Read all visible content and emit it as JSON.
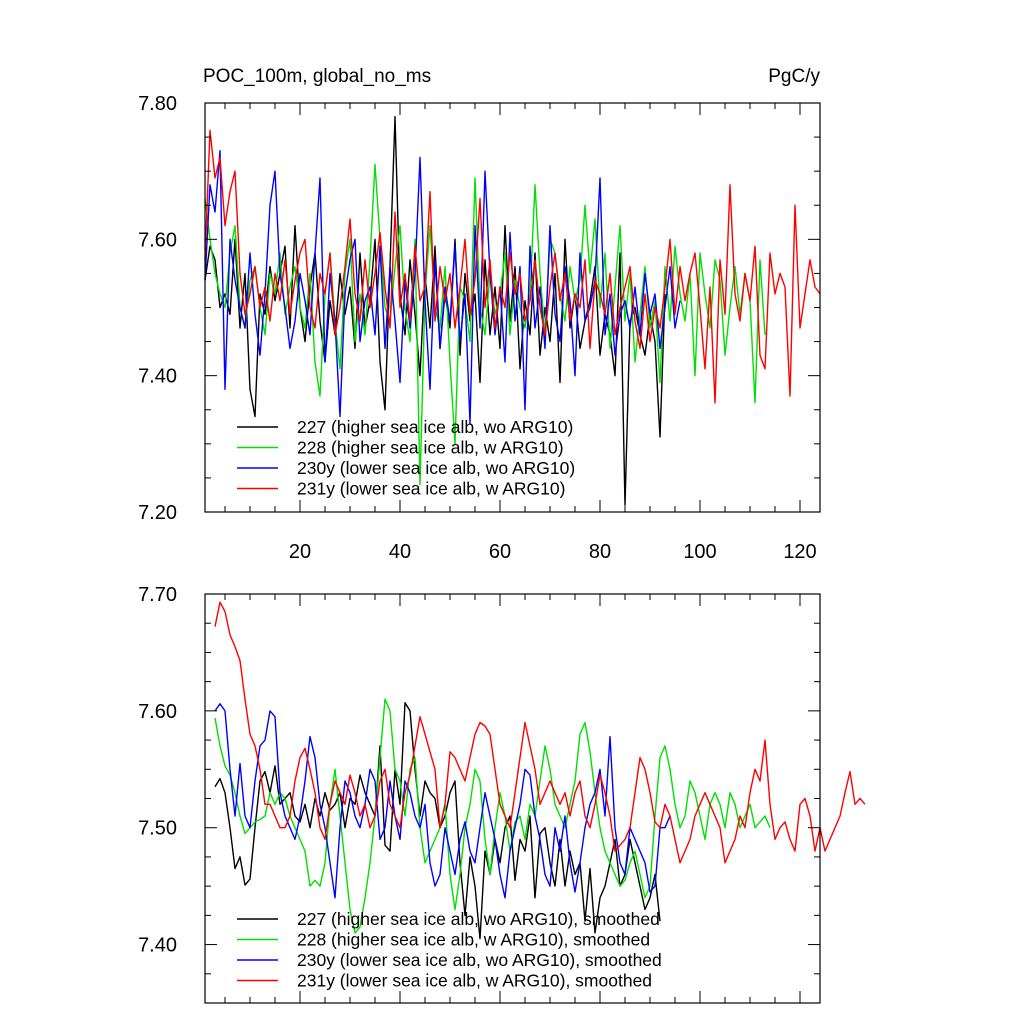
{
  "header": {
    "left": "POC_100m, global_no_ms",
    "right": "PgC/y"
  },
  "chart_data": [
    {
      "id": "top",
      "type": "line",
      "title": "POC_100m, global_no_ms",
      "units": "PgC/y",
      "xlim": [
        1,
        124
      ],
      "ylim": [
        7.2,
        7.8
      ],
      "xticks": [
        20,
        40,
        60,
        80,
        100,
        120
      ],
      "yticks": [
        7.2,
        7.4,
        7.6,
        7.8
      ],
      "ytick_labels": [
        "7.20",
        "7.40",
        "7.60",
        "7.80"
      ],
      "legend_position": "lower-left",
      "series": [
        {
          "name": "227 (higher sea ice alb, wo ARG10)",
          "color": "#000000",
          "x_start": 1,
          "values": [
            7.54,
            7.59,
            7.57,
            7.5,
            7.52,
            7.49,
            7.6,
            7.47,
            7.55,
            7.38,
            7.34,
            7.52,
            7.49,
            7.56,
            7.51,
            7.55,
            7.59,
            7.47,
            7.62,
            7.5,
            7.45,
            7.53,
            7.58,
            7.48,
            7.42,
            7.51,
            7.46,
            7.55,
            7.49,
            7.53,
            7.44,
            7.58,
            7.47,
            7.51,
            7.6,
            7.42,
            7.35,
            7.56,
            7.78,
            7.52,
            7.46,
            7.57,
            7.49,
            7.4,
            7.55,
            7.47,
            7.59,
            7.44,
            7.52,
            7.47,
            7.6,
            7.43,
            7.55,
            7.48,
            7.52,
            7.39,
            7.57,
            7.46,
            7.53,
            7.44,
            7.62,
            7.48,
            7.56,
            7.41,
            7.51,
            7.46,
            7.58,
            7.43,
            7.5,
            7.45,
            7.55,
            7.39,
            7.6,
            7.47,
            7.52,
            7.44,
            7.48,
            7.51,
            7.56,
            7.43,
            7.49,
            7.46,
            7.4,
            7.58,
            7.21,
            7.48,
            7.5,
            7.46,
            7.43,
            7.49,
            7.45,
            7.31,
            7.52
          ]
        },
        {
          "name": "228 (higher sea ice alb, w ARG10)",
          "color": "#00e000",
          "x_start": 1,
          "values": [
            7.66,
            7.6,
            7.55,
            7.52,
            7.5,
            7.58,
            7.62,
            7.5,
            7.47,
            7.54,
            7.56,
            7.5,
            7.46,
            7.55,
            7.52,
            7.58,
            7.49,
            7.53,
            7.56,
            7.5,
            7.47,
            7.55,
            7.42,
            7.37,
            7.52,
            7.58,
            7.48,
            7.41,
            7.55,
            7.6,
            7.45,
            7.52,
            7.46,
            7.57,
            7.71,
            7.6,
            7.5,
            7.48,
            7.56,
            7.62,
            7.5,
            7.45,
            7.6,
            7.24,
            7.52,
            7.62,
            7.5,
            7.47,
            7.56,
            7.42,
            7.3,
            7.53,
            7.51,
            7.45,
            7.69,
            7.5,
            7.46,
            7.55,
            7.49,
            7.52,
            7.58,
            7.46,
            7.54,
            7.5,
            7.47,
            7.52,
            7.68,
            7.55,
            7.46,
            7.6,
            7.58,
            7.52,
            7.48,
            7.56,
            7.51,
            7.54,
            7.65,
            7.55,
            7.63,
            7.5,
            7.58,
            7.44,
            7.53,
            7.62,
            7.48,
            7.55,
            7.42,
            7.49,
            7.56,
            7.47,
            7.51,
            7.39,
            7.56,
            7.48,
            7.59,
            7.52,
            7.48,
            7.55,
            7.4,
            7.58,
            7.52,
            7.47,
            7.57,
            7.54,
            7.43,
            7.5,
            7.56,
            7.49,
            7.55,
            7.51,
            7.36,
            7.57,
            7.46
          ]
        },
        {
          "name": "230y (lower sea ice alb, wo ARG10)",
          "color": "#0000ff",
          "x_start": 1,
          "values": [
            7.54,
            7.68,
            7.64,
            7.73,
            7.38,
            7.6,
            7.54,
            7.5,
            7.47,
            7.58,
            7.49,
            7.43,
            7.52,
            7.65,
            7.7,
            7.55,
            7.5,
            7.44,
            7.48,
            7.55,
            7.51,
            7.46,
            7.58,
            7.69,
            7.42,
            7.55,
            7.48,
            7.34,
            7.52,
            7.57,
            7.6,
            7.45,
            7.51,
            7.53,
            7.46,
            7.59,
            7.44,
            7.56,
            7.48,
            7.39,
            7.54,
            7.47,
            7.55,
            7.72,
            7.51,
            7.38,
            7.57,
            7.44,
            7.53,
            7.48,
            7.59,
            7.45,
            7.52,
            7.33,
            7.62,
            7.47,
            7.7,
            7.55,
            7.46,
            7.53,
            7.42,
            7.61,
            7.48,
            7.56,
            7.35,
            7.59,
            7.47,
            7.53,
            7.44,
            7.62,
            7.49,
            7.45,
            7.56,
            7.51,
            7.4,
            7.58,
            7.48,
            7.5,
            7.54,
            7.69,
            7.46,
            7.52,
            7.43,
            7.49,
            7.51,
            7.47,
            7.53,
            7.46,
            7.55,
            7.49,
            7.52,
            7.44,
            7.5,
            7.56,
            7.47,
            7.51
          ]
        },
        {
          "name": "231y (lower sea ice alb, w ARG10)",
          "color": "#ff0000",
          "x_start": 1,
          "values": [
            7.57,
            7.76,
            7.69,
            7.72,
            7.62,
            7.67,
            7.7,
            7.55,
            7.49,
            7.52,
            7.56,
            7.5,
            7.53,
            7.48,
            7.55,
            7.51,
            7.57,
            7.49,
            7.54,
            7.58,
            7.6,
            7.5,
            7.47,
            7.55,
            7.52,
            7.58,
            7.46,
            7.5,
            7.56,
            7.63,
            7.52,
            7.48,
            7.57,
            7.5,
            7.55,
            7.61,
            7.53,
            7.47,
            7.64,
            7.5,
            7.55,
            7.48,
            7.59,
            7.51,
            7.53,
            7.67,
            7.48,
            7.56,
            7.51,
            7.55,
            7.47,
            7.53,
            7.6,
            7.49,
            7.54,
            7.66,
            7.5,
            7.57,
            7.47,
            7.53,
            7.5,
            7.58,
            7.52,
            7.55,
            7.48,
            7.51,
            7.57,
            7.5,
            7.46,
            7.53,
            7.58,
            7.51,
            7.55,
            7.48,
            7.52,
            7.5,
            7.57,
            7.44,
            7.54,
            7.52,
            7.49,
            7.55,
            7.46,
            7.5,
            7.53,
            7.56,
            7.48,
            7.44,
            7.52,
            7.45,
            7.5,
            7.47,
            7.53,
            7.6,
            7.49,
            7.56,
            7.51,
            7.55,
            7.58,
            7.5,
            7.41,
            7.53,
            7.36,
            7.57,
            7.49,
            7.68,
            7.52,
            7.48,
            7.55,
            7.51,
            7.59,
            7.43,
            7.41,
            7.58,
            7.52,
            7.55,
            7.53,
            7.37,
            7.65,
            7.47,
            7.52,
            7.57,
            7.53,
            7.52
          ]
        }
      ]
    },
    {
      "id": "bottom",
      "type": "line",
      "xlim": [
        1,
        124
      ],
      "ylim": [
        7.35,
        7.7
      ],
      "xticks": [
        20,
        40,
        60,
        80,
        100,
        120
      ],
      "yticks": [
        7.4,
        7.5,
        7.6,
        7.7
      ],
      "ytick_labels": [
        "7.40",
        "7.50",
        "7.60",
        "7.70"
      ],
      "legend_position": "lower-left",
      "series": [
        {
          "name": "227 (higher sea ice alb, wo ARG10), smoothed",
          "color": "#000000",
          "x_start": 3,
          "values": [
            7.535,
            7.542,
            7.53,
            7.5,
            7.465,
            7.475,
            7.451,
            7.456,
            7.5,
            7.54,
            7.548,
            7.53,
            7.553,
            7.52,
            7.525,
            7.53,
            7.51,
            7.505,
            7.52,
            7.5,
            7.525,
            7.51,
            7.53,
            7.515,
            7.52,
            7.53,
            7.5,
            7.525,
            7.52,
            7.545,
            7.53,
            7.52,
            7.51,
            7.57,
            7.485,
            7.48,
            7.55,
            7.52,
            7.607,
            7.6,
            7.55,
            7.51,
            7.54,
            7.53,
            7.525,
            7.5,
            7.51,
            7.53,
            7.54,
            7.47,
            7.425,
            7.475,
            7.45,
            7.405,
            7.48,
            7.46,
            7.49,
            7.47,
            7.5,
            7.51,
            7.455,
            7.49,
            7.48,
            7.51,
            7.44,
            7.495,
            7.5,
            7.47,
            7.45,
            7.49,
            7.45,
            7.48,
            7.46,
            7.47,
            7.42,
            7.465,
            7.41,
            7.44,
            7.45,
            7.47,
            7.49,
            7.45,
            7.46,
            7.49,
            7.47,
            7.45,
            7.43,
            7.44,
            7.46,
            7.42
          ]
        },
        {
          "name": "228 (higher sea ice alb, w ARG10), smoothed",
          "color": "#00e000",
          "x_start": 3,
          "values": [
            7.594,
            7.57,
            7.553,
            7.545,
            7.53,
            7.51,
            7.495,
            7.5,
            7.505,
            7.507,
            7.51,
            7.53,
            7.52,
            7.53,
            7.525,
            7.51,
            7.5,
            7.49,
            7.48,
            7.45,
            7.455,
            7.45,
            7.47,
            7.52,
            7.55,
            7.51,
            7.47,
            7.43,
            7.41,
            7.415,
            7.44,
            7.47,
            7.51,
            7.56,
            7.61,
            7.6,
            7.55,
            7.54,
            7.51,
            7.55,
            7.56,
            7.5,
            7.47,
            7.48,
            7.49,
            7.5,
            7.52,
            7.46,
            7.43,
            7.46,
            7.5,
            7.52,
            7.55,
            7.54,
            7.49,
            7.46,
            7.5,
            7.53,
            7.51,
            7.48,
            7.505,
            7.51,
            7.49,
            7.52,
            7.51,
            7.54,
            7.57,
            7.55,
            7.52,
            7.51,
            7.5,
            7.52,
            7.54,
            7.58,
            7.59,
            7.565,
            7.53,
            7.5,
            7.48,
            7.47,
            7.46,
            7.45,
            7.455,
            7.47,
            7.48,
            7.46,
            7.44,
            7.45,
            7.51,
            7.56,
            7.57,
            7.55,
            7.52,
            7.5,
            7.51,
            7.54,
            7.53,
            7.51,
            7.49,
            7.52,
            7.53,
            7.52,
            7.5,
            7.53,
            7.52,
            7.5,
            7.51,
            7.52,
            7.5,
            7.505,
            7.51,
            7.5
          ]
        },
        {
          "name": "230y (lower sea ice alb, wo ARG10), smoothed",
          "color": "#0000ff",
          "x_start": 3,
          "values": [
            7.6,
            7.606,
            7.6,
            7.55,
            7.51,
            7.555,
            7.51,
            7.5,
            7.54,
            7.57,
            7.575,
            7.6,
            7.595,
            7.53,
            7.51,
            7.5,
            7.49,
            7.51,
            7.54,
            7.578,
            7.56,
            7.52,
            7.5,
            7.47,
            7.44,
            7.5,
            7.54,
            7.53,
            7.51,
            7.5,
            7.52,
            7.55,
            7.54,
            7.49,
            7.5,
            7.54,
            7.51,
            7.49,
            7.54,
            7.53,
            7.51,
            7.5,
            7.52,
            7.47,
            7.45,
            7.46,
            7.5,
            7.48,
            7.46,
            7.49,
            7.505,
            7.48,
            7.47,
            7.5,
            7.53,
            7.51,
            7.49,
            7.46,
            7.44,
            7.48,
            7.5,
            7.52,
            7.55,
            7.545,
            7.51,
            7.49,
            7.46,
            7.45,
            7.5,
            7.48,
            7.51,
            7.47,
            7.445,
            7.47,
            7.5,
            7.52,
            7.53,
            7.55,
            7.51,
            7.578,
            7.5,
            7.47,
            7.46,
            7.5,
            7.49,
            7.48,
            7.47,
            7.445,
            7.45,
            7.5,
            7.5,
            7.51
          ]
        },
        {
          "name": "231y (lower sea ice alb, w ARG10), smoothed",
          "color": "#ff0000",
          "x_start": 3,
          "values": [
            7.672,
            7.693,
            7.685,
            7.665,
            7.655,
            7.643,
            7.61,
            7.58,
            7.57,
            7.55,
            7.52,
            7.52,
            7.51,
            7.5,
            7.5,
            7.51,
            7.54,
            7.56,
            7.568,
            7.55,
            7.53,
            7.5,
            7.49,
            7.52,
            7.54,
            7.53,
            7.52,
            7.545,
            7.53,
            7.51,
            7.52,
            7.5,
            7.51,
            7.54,
            7.55,
            7.52,
            7.51,
            7.5,
            7.53,
            7.545,
            7.57,
            7.595,
            7.58,
            7.565,
            7.55,
            7.5,
            7.52,
            7.565,
            7.56,
            7.55,
            7.54,
            7.56,
            7.58,
            7.59,
            7.587,
            7.58,
            7.55,
            7.52,
            7.51,
            7.5,
            7.53,
            7.56,
            7.59,
            7.57,
            7.55,
            7.52,
            7.53,
            7.54,
            7.53,
            7.52,
            7.53,
            7.51,
            7.53,
            7.54,
            7.51,
            7.5,
            7.52,
            7.545,
            7.53,
            7.51,
            7.48,
            7.485,
            7.49,
            7.5,
            7.53,
            7.56,
            7.55,
            7.53,
            7.505,
            7.5,
            7.52,
            7.51,
            7.49,
            7.47,
            7.48,
            7.49,
            7.51,
            7.52,
            7.53,
            7.52,
            7.51,
            7.5,
            7.47,
            7.48,
            7.49,
            7.51,
            7.5,
            7.53,
            7.55,
            7.54,
            7.575,
            7.52,
            7.49,
            7.5,
            7.505,
            7.49,
            7.48,
            7.52,
            7.525,
            7.51,
            7.48,
            7.5,
            7.48,
            7.49,
            7.5,
            7.51,
            7.53,
            7.548,
            7.52,
            7.525,
            7.52
          ]
        }
      ]
    }
  ]
}
